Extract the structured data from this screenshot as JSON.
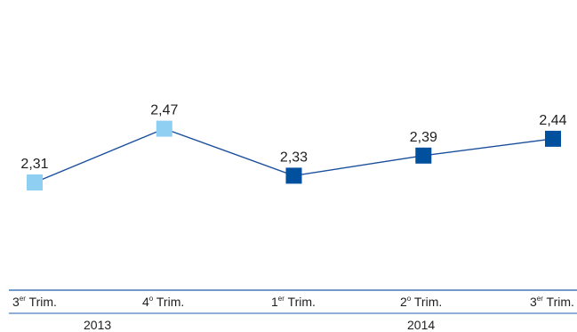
{
  "chart_data": {
    "type": "line",
    "categories": [
      {
        "main": "3",
        "sup": "er",
        "rest": " Trim."
      },
      {
        "main": "4",
        "sup": "o",
        "rest": " Trim."
      },
      {
        "main": "1",
        "sup": "er",
        "rest": " Trim."
      },
      {
        "main": "2",
        "sup": "o",
        "rest": " Trim."
      },
      {
        "main": "3",
        "sup": "er",
        "rest": " Trim."
      }
    ],
    "years": [
      "2013",
      "2014"
    ],
    "values": [
      2.31,
      2.47,
      2.33,
      2.39,
      2.44
    ],
    "data_labels": [
      "2,31",
      "2,47",
      "2,33",
      "2,39",
      "2,44"
    ],
    "ylim": [
      2.0,
      2.8
    ],
    "grid": false,
    "colors": {
      "line": "#1a4f9c",
      "marker_2013": "#8fd0f2",
      "marker_2014": "#00509d",
      "axis": "#1f5da8"
    }
  }
}
